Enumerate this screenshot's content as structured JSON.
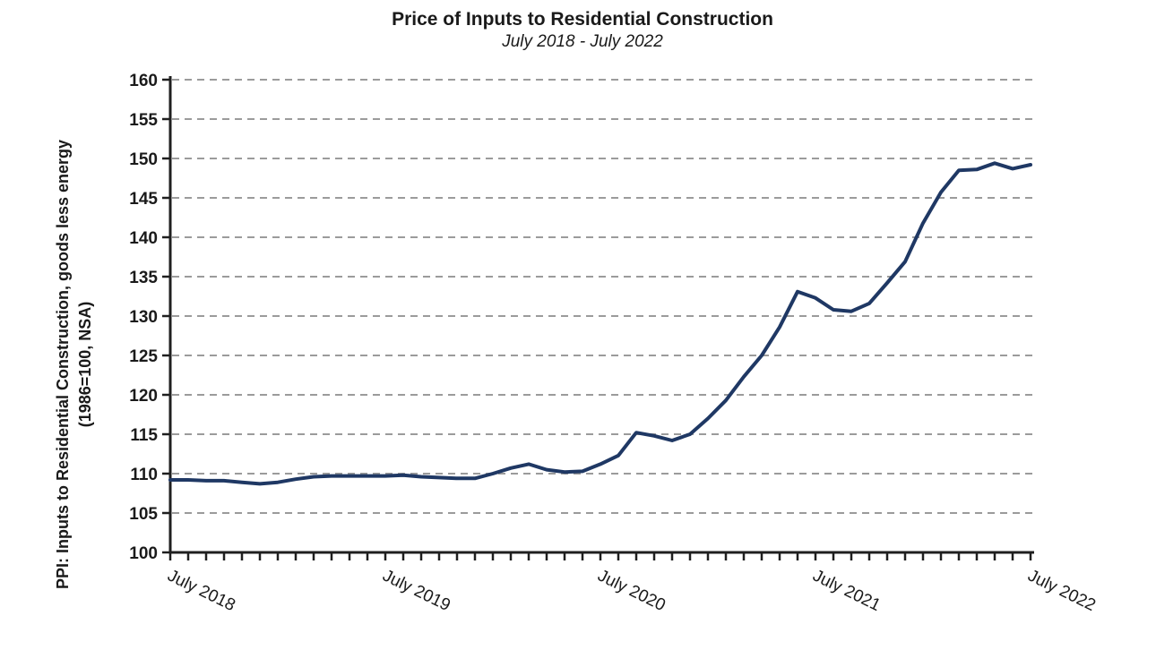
{
  "chart_data": {
    "type": "line",
    "title": "Price of Inputs to Residential Construction",
    "subtitle": "July 2018 - July 2022",
    "ylabel_line1": "PPI: Inputs to Residential Construction, goods less energy",
    "ylabel_line2": "(1986=100, NSA)",
    "ylim": [
      100,
      160
    ],
    "yticks": [
      100,
      105,
      110,
      115,
      120,
      125,
      130,
      135,
      140,
      145,
      150,
      155,
      160
    ],
    "grid": "horizontal-dashed",
    "legend_position": "none",
    "line_color": "#1f3864",
    "grid_color": "#9b9b9b",
    "axis_color": "#1f1f1f",
    "text_color": "#1a1a1a",
    "x": [
      "Jul 2018",
      "Aug 2018",
      "Sep 2018",
      "Oct 2018",
      "Nov 2018",
      "Dec 2018",
      "Jan 2019",
      "Feb 2019",
      "Mar 2019",
      "Apr 2019",
      "May 2019",
      "Jun 2019",
      "Jul 2019",
      "Aug 2019",
      "Sep 2019",
      "Oct 2019",
      "Nov 2019",
      "Dec 2019",
      "Jan 2020",
      "Feb 2020",
      "Mar 2020",
      "Apr 2020",
      "May 2020",
      "Jun 2020",
      "Jul 2020",
      "Aug 2020",
      "Sep 2020",
      "Oct 2020",
      "Nov 2020",
      "Dec 2020",
      "Jan 2021",
      "Feb 2021",
      "Mar 2021",
      "Apr 2021",
      "May 2021",
      "Jun 2021",
      "Jul 2021",
      "Aug 2021",
      "Sep 2021",
      "Oct 2021",
      "Nov 2021",
      "Dec 2021",
      "Jan 2022",
      "Feb 2022",
      "Mar 2022",
      "Apr 2022",
      "May 2022",
      "Jun 2022",
      "Jul 2022"
    ],
    "values": [
      109.2,
      109.2,
      109.1,
      109.1,
      108.9,
      108.7,
      108.9,
      109.3,
      109.6,
      109.7,
      109.7,
      109.7,
      109.7,
      109.8,
      109.6,
      109.5,
      109.4,
      109.4,
      110.0,
      110.7,
      111.2,
      110.5,
      110.2,
      110.3,
      111.2,
      112.3,
      115.2,
      114.8,
      114.2,
      115.0,
      117.0,
      119.3,
      122.3,
      125.0,
      128.6,
      133.1,
      132.3,
      130.8,
      130.6,
      131.6,
      134.2,
      136.9,
      141.8,
      145.7,
      148.5,
      148.6,
      149.4,
      148.7,
      149.2
    ],
    "xtick_labels": [
      "July 2018",
      "July 2019",
      "July 2020",
      "July 2021",
      "July 2022"
    ],
    "xtick_index": [
      0,
      12,
      24,
      36,
      48
    ]
  }
}
